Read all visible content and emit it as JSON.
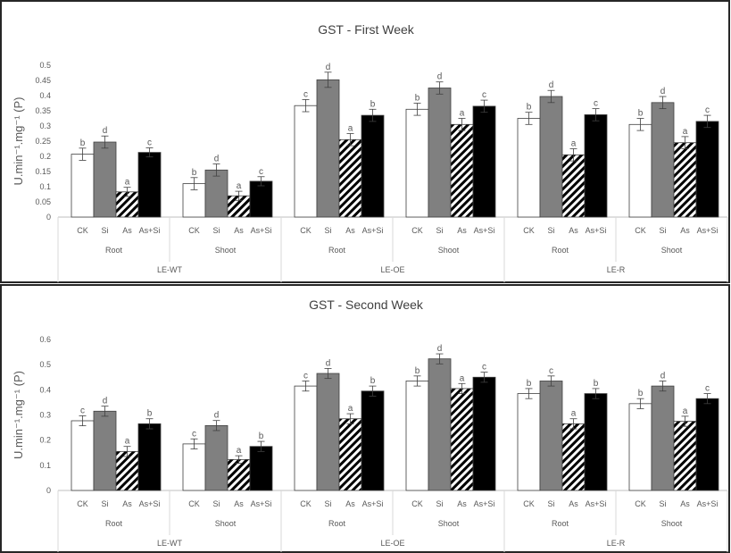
{
  "chart_data": [
    {
      "type": "bar",
      "title": "GST - First Week",
      "ylabel": "U.min⁻¹.mg⁻¹ (P)",
      "ylim": [
        0,
        0.5
      ],
      "yticks": [
        "0",
        "0.05",
        "0.1",
        "0.15",
        "0.2",
        "0.25",
        "0.3",
        "0.35",
        "0.4",
        "0.45",
        "0.5"
      ],
      "categories": [
        "CK",
        "Si",
        "As",
        "As+Si"
      ],
      "groups": [
        {
          "line": "LE-WT",
          "tissue": "Root",
          "values": [
            0.207,
            0.247,
            0.083,
            0.213
          ],
          "errors": [
            0.02,
            0.02,
            0.015,
            0.015
          ],
          "letters": [
            "b",
            "d",
            "a",
            "c"
          ]
        },
        {
          "line": "LE-WT",
          "tissue": "Shoot",
          "values": [
            0.11,
            0.155,
            0.07,
            0.118
          ],
          "errors": [
            0.02,
            0.02,
            0.015,
            0.015
          ],
          "letters": [
            "b",
            "d",
            "a",
            "c"
          ]
        },
        {
          "line": "LE-OE",
          "tissue": "Root",
          "values": [
            0.367,
            0.452,
            0.255,
            0.335
          ],
          "errors": [
            0.02,
            0.025,
            0.02,
            0.02
          ],
          "letters": [
            "c",
            "d",
            "a",
            "b"
          ]
        },
        {
          "line": "LE-OE",
          "tissue": "Shoot",
          "values": [
            0.355,
            0.425,
            0.305,
            0.365
          ],
          "errors": [
            0.02,
            0.02,
            0.02,
            0.02
          ],
          "letters": [
            "b",
            "d",
            "a",
            "c"
          ]
        },
        {
          "line": "LE-R",
          "tissue": "Root",
          "values": [
            0.325,
            0.397,
            0.205,
            0.337
          ],
          "errors": [
            0.02,
            0.02,
            0.02,
            0.02
          ],
          "letters": [
            "b",
            "d",
            "a",
            "c"
          ]
        },
        {
          "line": "LE-R",
          "tissue": "Shoot",
          "values": [
            0.305,
            0.377,
            0.245,
            0.315
          ],
          "errors": [
            0.02,
            0.02,
            0.02,
            0.02
          ],
          "letters": [
            "b",
            "d",
            "a",
            "c"
          ]
        }
      ]
    },
    {
      "type": "bar",
      "title": "GST - Second Week",
      "ylabel": "U.min⁻¹.mg⁻¹ (P)",
      "ylim": [
        0,
        0.6
      ],
      "yticks": [
        "0",
        "0.1",
        "0.2",
        "0.3",
        "0.4",
        "0.5",
        "0.6"
      ],
      "categories": [
        "CK",
        "Si",
        "As",
        "As+Si"
      ],
      "groups": [
        {
          "line": "LE-WT",
          "tissue": "Root",
          "values": [
            0.277,
            0.315,
            0.155,
            0.265
          ],
          "errors": [
            0.02,
            0.02,
            0.02,
            0.02
          ],
          "letters": [
            "c",
            "d",
            "a",
            "b"
          ]
        },
        {
          "line": "LE-WT",
          "tissue": "Shoot",
          "values": [
            0.185,
            0.258,
            0.123,
            0.175
          ],
          "errors": [
            0.02,
            0.02,
            0.015,
            0.02
          ],
          "letters": [
            "c",
            "d",
            "a",
            "b"
          ]
        },
        {
          "line": "LE-OE",
          "tissue": "Root",
          "values": [
            0.415,
            0.465,
            0.285,
            0.395
          ],
          "errors": [
            0.02,
            0.02,
            0.02,
            0.02
          ],
          "letters": [
            "c",
            "d",
            "a",
            "b"
          ]
        },
        {
          "line": "LE-OE",
          "tissue": "Shoot",
          "values": [
            0.435,
            0.523,
            0.405,
            0.45
          ],
          "errors": [
            0.02,
            0.02,
            0.02,
            0.02
          ],
          "letters": [
            "b",
            "d",
            "a",
            "c"
          ]
        },
        {
          "line": "LE-R",
          "tissue": "Root",
          "values": [
            0.385,
            0.435,
            0.265,
            0.385
          ],
          "errors": [
            0.02,
            0.02,
            0.02,
            0.02
          ],
          "letters": [
            "b",
            "c",
            "a",
            "b"
          ]
        },
        {
          "line": "LE-R",
          "tissue": "Shoot",
          "values": [
            0.345,
            0.415,
            0.275,
            0.365
          ],
          "errors": [
            0.02,
            0.02,
            0.02,
            0.02
          ],
          "letters": [
            "b",
            "d",
            "a",
            "c"
          ]
        }
      ]
    }
  ],
  "bar_colors": [
    "#ffffff",
    "#808080",
    "hatch",
    "#000000"
  ]
}
